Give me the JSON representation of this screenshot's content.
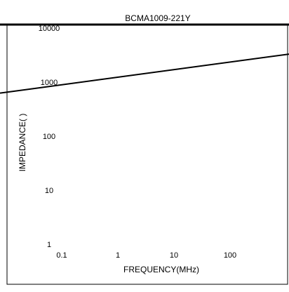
{
  "chart_data": {
    "type": "line",
    "title": "BCMA1009-221Y",
    "xlabel": "FREQUENCY(MHz)",
    "ylabel": "IMPEDANCE(  )",
    "x_scale": "log",
    "y_scale": "log",
    "x_ticks": [
      "0.1",
      "1",
      "10",
      "100"
    ],
    "y_ticks": [
      "1",
      "10",
      "100",
      "1000",
      "10000"
    ],
    "xlim": [
      0.1,
      1000
    ],
    "ylim": [
      1,
      10000
    ],
    "grid": false,
    "series": [
      {
        "x": [
          0.1,
          1000
        ],
        "y": [
          1100,
          4000
        ]
      }
    ]
  },
  "colors": {
    "line": "#000000",
    "frame": "#000000",
    "background": "#ffffff"
  }
}
